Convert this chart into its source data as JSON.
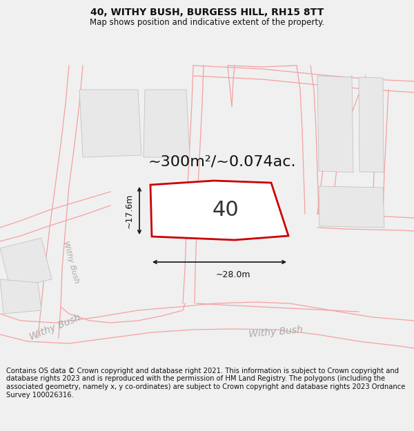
{
  "title": "40, WITHY BUSH, BURGESS HILL, RH15 8TT",
  "subtitle": "Map shows position and indicative extent of the property.",
  "area_label": "~300m²/~0.074ac.",
  "property_number": "40",
  "dim_width": "~28.0m",
  "dim_height": "~17.6m",
  "footer": "Contains OS data © Crown copyright and database right 2021. This information is subject to Crown copyright and database rights 2023 and is reproduced with the permission of HM Land Registry. The polygons (including the associated geometry, namely x, y co-ordinates) are subject to Crown copyright and database rights 2023 Ordnance Survey 100026316.",
  "bg_color": "#ffffff",
  "page_bg": "#f0f0f0",
  "bldg_fill": "#e8e8e8",
  "bldg_edge": "#bbbbbb",
  "road_line_color": "#f5a0a0",
  "property_fill": "#ffffff",
  "property_stroke": "#cc0000",
  "road_label_color": "#aaaaaa",
  "dim_line_color": "#111111",
  "area_label_color": "#111111",
  "prop_num_color": "#333333",
  "title_fontsize": 10,
  "subtitle_fontsize": 8.5,
  "footer_fontsize": 7.2,
  "area_fontsize": 16,
  "prop_num_fontsize": 22,
  "road_label_fontsize": 10
}
